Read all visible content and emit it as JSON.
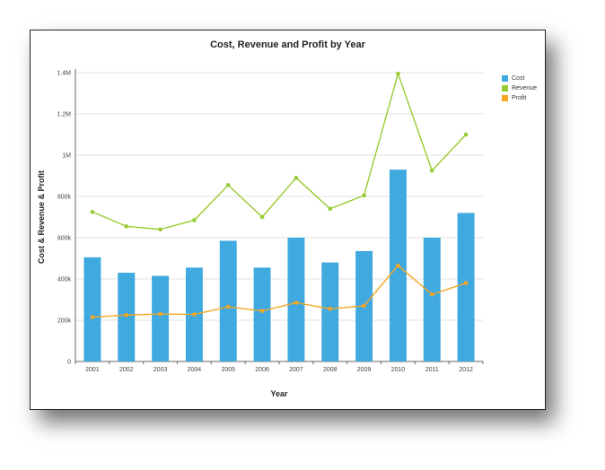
{
  "chart_data": {
    "type": "bar",
    "title": "Cost, Revenue and Profit by Year",
    "xlabel": "Year",
    "ylabel": "Cost & Revenue & Profit",
    "categories": [
      "2001",
      "2002",
      "2003",
      "2004",
      "2005",
      "2006",
      "2007",
      "2008",
      "2009",
      "2010",
      "2011",
      "2012"
    ],
    "yticks": [
      0,
      200000,
      400000,
      600000,
      800000,
      1000000,
      1200000,
      1400000
    ],
    "ytick_labels": [
      "0",
      "200k",
      "400k",
      "600k",
      "800k",
      "1M",
      "1.2M",
      "1.4M"
    ],
    "ylim": [
      0,
      1400000
    ],
    "grid": true,
    "legend_position": "top-right",
    "series": [
      {
        "name": "Cost",
        "type": "bar",
        "color": "#3fa9e0",
        "values": [
          505000,
          430000,
          415000,
          455000,
          585000,
          455000,
          600000,
          480000,
          535000,
          930000,
          600000,
          720000
        ]
      },
      {
        "name": "Revenue",
        "type": "line",
        "color": "#99cc33",
        "values": [
          725000,
          655000,
          640000,
          685000,
          855000,
          700000,
          890000,
          740000,
          805000,
          1395000,
          925000,
          1100000
        ]
      },
      {
        "name": "Profit",
        "type": "line",
        "color": "#f5a623",
        "values": [
          215000,
          225000,
          230000,
          228000,
          265000,
          245000,
          285000,
          255000,
          270000,
          465000,
          325000,
          380000
        ]
      }
    ]
  }
}
